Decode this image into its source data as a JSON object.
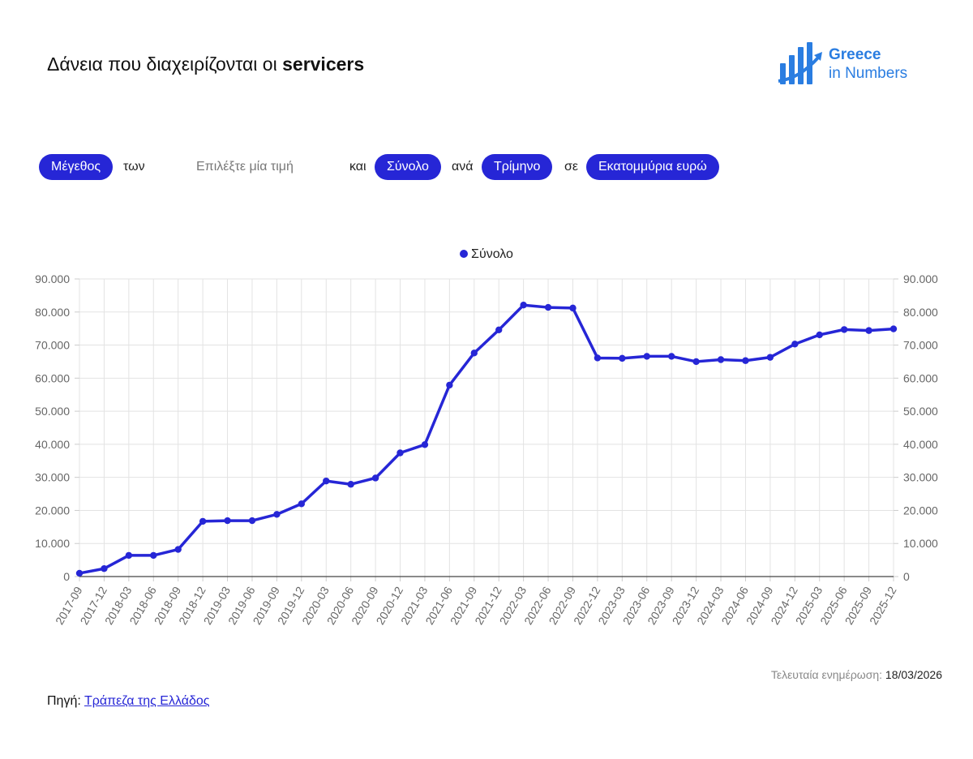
{
  "header": {
    "title_prefix": "Δάνεια που διαχειρίζονται οι ",
    "title_bold": "servicers",
    "logo_line1": "Greece",
    "logo_line2": "in Numbers"
  },
  "controls": {
    "measure": "Μέγεθος",
    "word_of": "των",
    "placeholder": "Επιλέξτε μία τιμή",
    "word_and": "και",
    "aggregate": "Σύνολο",
    "word_per": "ανά",
    "period": "Τρίμηνο",
    "word_in": "σε",
    "unit": "Εκατομμύρια ευρώ"
  },
  "footer": {
    "updated_label": "Τελευταία ενημέρωση:",
    "updated_value": "18/03/2026",
    "source_label": "Πηγή:",
    "source_link": "Τράπεζα της Ελλάδος"
  },
  "colors": {
    "series": "#2626d6",
    "logo": "#2a7de1"
  },
  "chart_data": {
    "type": "line",
    "title": "",
    "xlabel": "",
    "ylabel": "",
    "ylim": [
      0,
      90000
    ],
    "yticks": [
      "0",
      "10.000",
      "20.000",
      "30.000",
      "40.000",
      "50.000",
      "60.000",
      "70.000",
      "80.000",
      "90.000"
    ],
    "grid": true,
    "legend": "top-center",
    "categories": [
      "2017-09",
      "2017-12",
      "2018-03",
      "2018-06",
      "2018-09",
      "2018-12",
      "2019-03",
      "2019-06",
      "2019-09",
      "2019-12",
      "2020-03",
      "2020-06",
      "2020-09",
      "2020-12",
      "2021-03",
      "2021-06",
      "2021-09",
      "2021-12",
      "2022-03",
      "2022-06",
      "2022-09",
      "2022-12",
      "2023-03",
      "2023-06",
      "2023-09",
      "2023-12",
      "2024-03",
      "2024-06",
      "2024-09",
      "2024-12",
      "2025-03",
      "2025-06",
      "2025-09",
      "2025-12"
    ],
    "series": [
      {
        "name": "Σύνολο",
        "values": [
          1000,
          2400,
          6400,
          6400,
          8200,
          16700,
          16900,
          16900,
          18800,
          22000,
          28900,
          27900,
          29800,
          37400,
          39900,
          57900,
          67600,
          74600,
          82100,
          81400,
          81200,
          66100,
          66000,
          66600,
          66600,
          65000,
          65600,
          65300,
          66300,
          70300,
          73100,
          74700,
          74400,
          74900
        ]
      }
    ]
  }
}
